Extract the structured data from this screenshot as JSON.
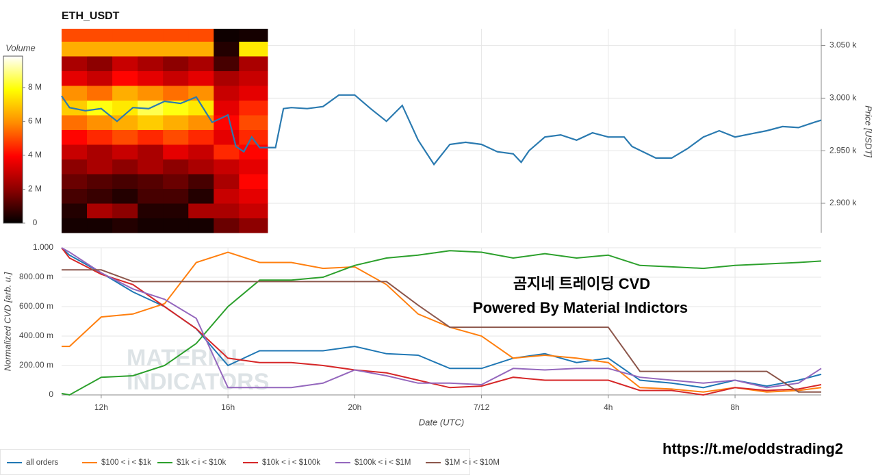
{
  "chart_data": [
    {
      "type": "heatmap",
      "title": "ETH_USDT",
      "y2label": "Price [USDT]",
      "colorbar_label": "Volume",
      "colormap": [
        "#000000",
        "#8b0000",
        "#ff0000",
        "#ff8c00",
        "#ffff00",
        "#ffffff"
      ],
      "xlim": [
        10.75,
        34.72
      ],
      "xticks": [
        12,
        16,
        20,
        24,
        28,
        32
      ],
      "y2lim": [
        2872,
        3066
      ],
      "y2ticks": [
        {
          "value": 2900,
          "label": "2.900 k"
        },
        {
          "value": 2950,
          "label": "2.950 k"
        },
        {
          "value": 3000,
          "label": "3.000 k"
        },
        {
          "value": 3050,
          "label": "3.050 k"
        }
      ],
      "zlim": [
        0,
        9850000
      ],
      "zticks": [
        {
          "value": 0,
          "label": "0"
        },
        {
          "value": 2000000,
          "label": "2 M"
        },
        {
          "value": 4000000,
          "label": "4 M"
        },
        {
          "value": 6000000,
          "label": "6 M"
        },
        {
          "value": 8000000,
          "label": "8 M"
        }
      ],
      "x_bins": [
        10.75,
        11.55,
        12.35,
        13.15,
        13.95,
        14.75,
        15.55,
        16.35,
        17.25
      ],
      "y_bins": [
        2872,
        2886,
        2900,
        2914,
        2928,
        2942,
        2956,
        2970,
        2984,
        2998,
        3012,
        3026,
        3040,
        3054,
        3066
      ],
      "z": [
        [
          300000,
          300000,
          500000,
          300000,
          300000,
          300000,
          1500000,
          2000000
        ],
        [
          500000,
          2500000,
          2000000,
          500000,
          500000,
          2500000,
          2500000,
          3000000
        ],
        [
          1000000,
          800000,
          500000,
          1000000,
          1000000,
          500000,
          3000000,
          3500000
        ],
        [
          1500000,
          1200000,
          1000000,
          1200000,
          1500000,
          1000000,
          2500000,
          4000000
        ],
        [
          2000000,
          2500000,
          2000000,
          2500000,
          2000000,
          2500000,
          3000000,
          3500000
        ],
        [
          3000000,
          2500000,
          3000000,
          2500000,
          3500000,
          3000000,
          4500000,
          4000000
        ],
        [
          4000000,
          4500000,
          5000000,
          4500000,
          5000000,
          4500000,
          3500000,
          4500000
        ],
        [
          5500000,
          6000000,
          6500000,
          7000000,
          6500000,
          6000000,
          4000000,
          5000000
        ],
        [
          7000000,
          8000000,
          7500000,
          8500000,
          8000000,
          7500000,
          3500000,
          4500000
        ],
        [
          6000000,
          5500000,
          6500000,
          6000000,
          5500000,
          6000000,
          3000000,
          3500000
        ],
        [
          3500000,
          3000000,
          4000000,
          3500000,
          3000000,
          3500000,
          2500000,
          3000000
        ],
        [
          2500000,
          2000000,
          3000000,
          2500000,
          2000000,
          2500000,
          1000000,
          2500000
        ],
        [
          6500000,
          6500000,
          6500000,
          6500000,
          6500000,
          6500000,
          500000,
          7500000
        ],
        [
          5000000,
          5000000,
          5000000,
          5000000,
          5000000,
          5000000,
          200000,
          300000
        ]
      ],
      "color": "#2a7ab0",
      "axis": "y2",
      "x": [
        10.75,
        11.0,
        11.5,
        12.0,
        12.5,
        13.0,
        13.5,
        14.0,
        14.5,
        15.0,
        15.5,
        16.0,
        16.25,
        16.5,
        16.75,
        17.0,
        17.5,
        17.75,
        18.0,
        18.5,
        19.0,
        19.5,
        20.0,
        20.5,
        21.0,
        21.5,
        22.0,
        22.5,
        23.0,
        23.5,
        24.0,
        24.5,
        25.0,
        25.25,
        25.5,
        26.0,
        26.5,
        27.0,
        27.5,
        28.0,
        28.5,
        28.75,
        29.5,
        30.0,
        30.5,
        31.0,
        31.5,
        32.0,
        32.5,
        33.0,
        33.5,
        34.0,
        34.5,
        34.72
      ],
      "values": [
        3002,
        2991,
        2988,
        2990,
        2978,
        2991,
        2990,
        2997,
        2995,
        3001,
        2977,
        2984,
        2954,
        2949,
        2963,
        2953,
        2953,
        2990,
        2991,
        2990,
        2992,
        3003,
        3003,
        2990,
        2978,
        2993,
        2960,
        2937,
        2956,
        2958,
        2956,
        2949,
        2947,
        2939,
        2950,
        2963,
        2965,
        2960,
        2967,
        2963,
        2963,
        2954,
        2943,
        2943,
        2952,
        2963,
        2969,
        2963,
        2966,
        2969,
        2973,
        2972,
        2977,
        2979
      ]
    },
    {
      "type": "line",
      "ylabel": "Normalized CVD [arb. u.]",
      "xlabel": "Date (UTC)",
      "annotations": [
        "곰지네 트레이딩 CVD",
        "Powered By Material Indictors"
      ],
      "watermark": [
        "MATERIAL",
        "INDICATORS"
      ],
      "xlim": [
        10.75,
        34.72
      ],
      "xticks": [
        {
          "value": 12,
          "label": "12h"
        },
        {
          "value": 16,
          "label": "16h"
        },
        {
          "value": 20,
          "label": "20h"
        },
        {
          "value": 24,
          "label": "7/12"
        },
        {
          "value": 28,
          "label": "4h"
        },
        {
          "value": 32,
          "label": "8h"
        }
      ],
      "ylim": [
        0,
        1.0
      ],
      "yticks": [
        0,
        {
          "value": 0.2,
          "label": "200.00 m"
        },
        {
          "value": 0.4,
          "label": "400.00 m"
        },
        {
          "value": 0.6,
          "label": "600.00 m"
        },
        {
          "value": 0.8,
          "label": "800.00 m"
        },
        {
          "value": 1.0,
          "label": "1.000"
        }
      ],
      "x": [
        10.75,
        11,
        12,
        13,
        14,
        15,
        16,
        17,
        18,
        19,
        20,
        21,
        22,
        23,
        24,
        25,
        26,
        27,
        28,
        29,
        30,
        31,
        32,
        33,
        34,
        34.72
      ],
      "series": [
        {
          "name": "all orders",
          "color": "#1f77b4",
          "values": [
            1.0,
            0.95,
            0.83,
            0.7,
            0.6,
            0.45,
            0.2,
            0.3,
            0.3,
            0.3,
            0.33,
            0.28,
            0.27,
            0.18,
            0.18,
            0.25,
            0.28,
            0.22,
            0.25,
            0.1,
            0.08,
            0.05,
            0.1,
            0.06,
            0.1,
            0.14
          ]
        },
        {
          "name": "$100 < i < $1k",
          "color": "#ff7f0e",
          "values": [
            0.33,
            0.33,
            0.53,
            0.55,
            0.62,
            0.9,
            0.97,
            0.9,
            0.9,
            0.86,
            0.87,
            0.75,
            0.55,
            0.46,
            0.4,
            0.25,
            0.27,
            0.25,
            0.22,
            0.05,
            0.04,
            0.02,
            0.05,
            0.02,
            0.03,
            0.05
          ]
        },
        {
          "name": "$1k < i < $10k",
          "color": "#2ca02c",
          "values": [
            0.01,
            0,
            0.12,
            0.13,
            0.2,
            0.35,
            0.6,
            0.78,
            0.78,
            0.8,
            0.88,
            0.93,
            0.95,
            0.98,
            0.97,
            0.93,
            0.96,
            0.93,
            0.95,
            0.88,
            0.87,
            0.86,
            0.88,
            0.89,
            0.9,
            0.91
          ]
        },
        {
          "name": "$10k < i < $100k",
          "color": "#d62728",
          "values": [
            1.0,
            0.93,
            0.82,
            0.75,
            0.6,
            0.45,
            0.25,
            0.22,
            0.22,
            0.2,
            0.17,
            0.15,
            0.1,
            0.05,
            0.06,
            0.12,
            0.1,
            0.1,
            0.1,
            0.03,
            0.03,
            0.0,
            0.05,
            0.03,
            0.04,
            0.07
          ]
        },
        {
          "name": "$100k < i < $1M",
          "color": "#9467bd",
          "values": [
            1.0,
            0.97,
            0.83,
            0.72,
            0.65,
            0.52,
            0.05,
            0.05,
            0.05,
            0.08,
            0.17,
            0.13,
            0.08,
            0.08,
            0.07,
            0.18,
            0.17,
            0.18,
            0.18,
            0.12,
            0.1,
            0.08,
            0.1,
            0.05,
            0.08,
            0.18
          ]
        },
        {
          "name": "$1M < i < $10M",
          "color": "#8c564b",
          "values": [
            0.85,
            0.85,
            0.85,
            0.77,
            0.77,
            0.77,
            0.77,
            0.77,
            0.77,
            0.77,
            0.77,
            0.77,
            0.61,
            0.46,
            0.46,
            0.46,
            0.46,
            0.46,
            0.46,
            0.16,
            0.16,
            0.16,
            0.16,
            0.16,
            0.02,
            0.02
          ]
        }
      ]
    }
  ],
  "footer": "https://t.me/oddstrading2"
}
